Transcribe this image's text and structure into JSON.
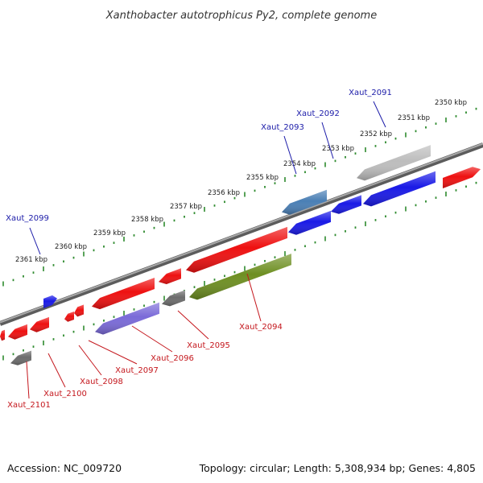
{
  "title": "Xanthobacter autotrophicus Py2, complete genome",
  "footer": {
    "accession": "Accession: NC_009720",
    "summary": "Topology: circular; Length: 5,308,934 bp; Genes: 4,805"
  },
  "colors": {
    "backbone": "#8a8a8a",
    "tick_track": "#2e8b2e",
    "gene_red": "#ee1111",
    "gene_blue": "#1a1ae6",
    "gene_grey": "#6c6c6c",
    "gene_lightgrey": "#bdbdbd",
    "gene_steelblue": "#4a7fb5",
    "gene_purple": "#7a6ad8",
    "gene_olive": "#6e8f22",
    "label_top": "#1a1aa8",
    "label_bottom": "#c4161c"
  },
  "kbp_labels": [
    "2350 kbp",
    "2351 kbp",
    "2352 kbp",
    "2353 kbp",
    "2354 kbp",
    "2355 kbp",
    "2356 kbp",
    "2357 kbp",
    "2358 kbp",
    "2359 kbp",
    "2360 kbp",
    "2361 kbp"
  ],
  "gene_labels_top": [
    "Xaut_2091",
    "Xaut_2092",
    "Xaut_2093",
    "Xaut_2099"
  ],
  "gene_labels_bottom": [
    "Xaut_2094",
    "Xaut_2095",
    "Xaut_2096",
    "Xaut_2097",
    "Xaut_2098",
    "Xaut_2100",
    "Xaut_2101"
  ],
  "genes": [
    {
      "color": "gene_red",
      "strand": "forward",
      "track": "inner"
    },
    {
      "color": "gene_lightgrey",
      "strand": "reverse",
      "track": "outer"
    },
    {
      "color": "gene_blue",
      "strand": "reverse",
      "track": "inner"
    },
    {
      "color": "gene_blue",
      "strand": "reverse",
      "track": "inner"
    },
    {
      "color": "gene_steelblue",
      "strand": "reverse",
      "track": "outer"
    },
    {
      "color": "gene_blue",
      "strand": "reverse",
      "track": "inner"
    },
    {
      "color": "gene_red",
      "strand": "reverse",
      "track": "inner"
    },
    {
      "color": "gene_olive",
      "strand": "reverse",
      "track": "outer"
    },
    {
      "color": "gene_red",
      "strand": "reverse",
      "track": "inner"
    },
    {
      "color": "gene_grey",
      "strand": "reverse",
      "track": "outer"
    },
    {
      "color": "gene_red",
      "strand": "reverse",
      "track": "inner"
    },
    {
      "color": "gene_purple",
      "strand": "reverse",
      "track": "outer"
    },
    {
      "color": "gene_red",
      "strand": "reverse",
      "track": "inner"
    },
    {
      "color": "gene_red",
      "strand": "reverse",
      "track": "inner"
    },
    {
      "color": "gene_blue",
      "strand": "forward",
      "track": "inner"
    },
    {
      "color": "gene_red",
      "strand": "reverse",
      "track": "inner"
    },
    {
      "color": "gene_red",
      "strand": "reverse",
      "track": "inner"
    },
    {
      "color": "gene_grey",
      "strand": "reverse",
      "track": "outer"
    },
    {
      "color": "gene_red",
      "strand": "reverse",
      "track": "inner"
    }
  ]
}
